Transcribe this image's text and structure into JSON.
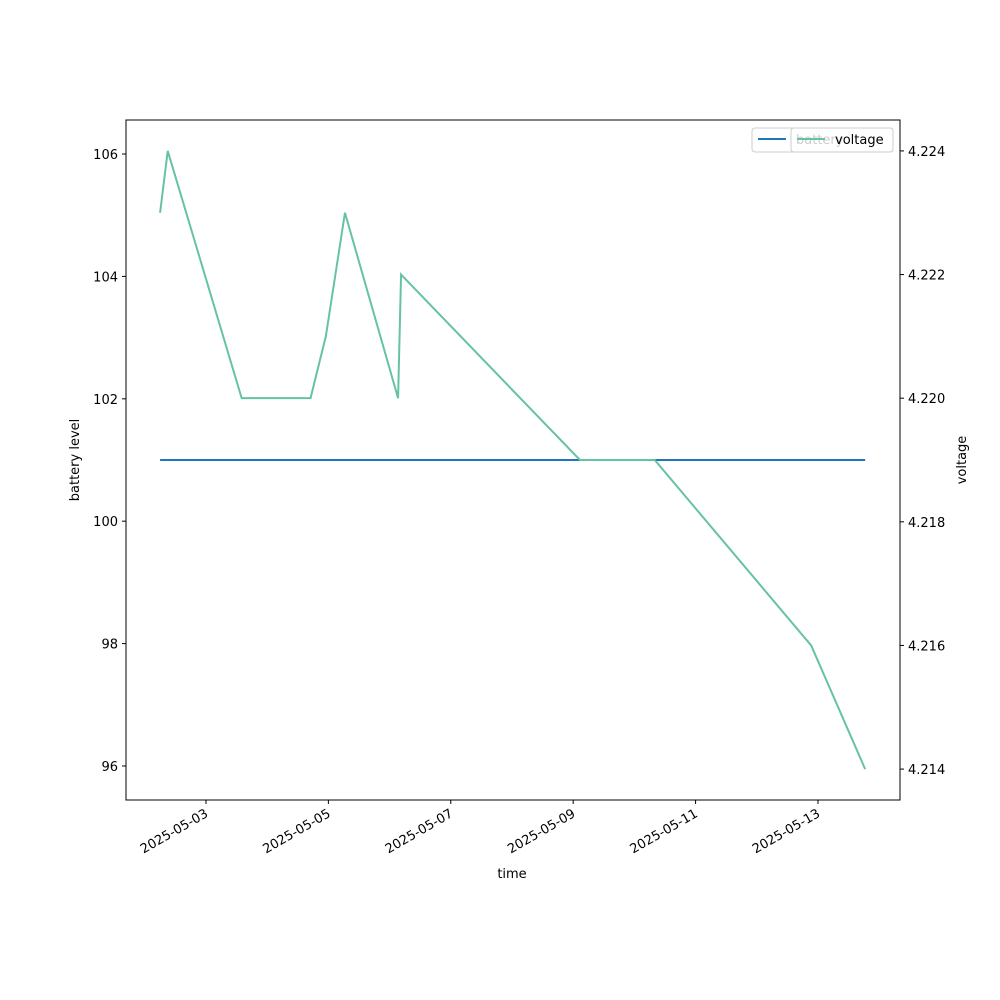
{
  "chart_data": {
    "type": "line",
    "xlabel": "time",
    "ylabel": "battery level",
    "y2label": "voltage",
    "x": [
      "2025-05-02T06:00",
      "2025-05-02T09:00",
      "2025-05-03T14:00",
      "2025-05-04T17:00",
      "2025-05-04T23:00",
      "2025-05-05T06:30",
      "2025-05-06T03:20",
      "2025-05-06T04:30",
      "2025-05-09T02:40",
      "2025-05-10T08:00",
      "2025-05-12T21:20",
      "2025-05-13T18:30"
    ],
    "series": [
      {
        "name": "battery",
        "color": "#1f77b4",
        "values": [
          101,
          101,
          101,
          101,
          101,
          101,
          101,
          101,
          101,
          101,
          101,
          101
        ]
      },
      {
        "name": "voltage",
        "color": "#66c2a5",
        "axis": "y2",
        "values": [
          4.223,
          4.224,
          4.22,
          4.22,
          4.221,
          4.223,
          4.22,
          4.222,
          4.219,
          4.219,
          4.216,
          4.214
        ]
      }
    ],
    "xlim": [
      "2025-05-01T16:38",
      "2025-05-14T08:10"
    ],
    "xticks": [
      "2025-05-03",
      "2025-05-05",
      "2025-05-07",
      "2025-05-09",
      "2025-05-11",
      "2025-05-13"
    ],
    "ylim": [
      95.444,
      106.556
    ],
    "yticks": [
      96,
      98,
      100,
      102,
      104,
      106
    ],
    "y2lim": [
      4.2135,
      4.2245
    ],
    "y2ticks": [
      4.214,
      4.216,
      4.218,
      {
        "value": 4.22,
        "label": "4.220"
      },
      4.222,
      4.224
    ],
    "legend": "upper right"
  }
}
